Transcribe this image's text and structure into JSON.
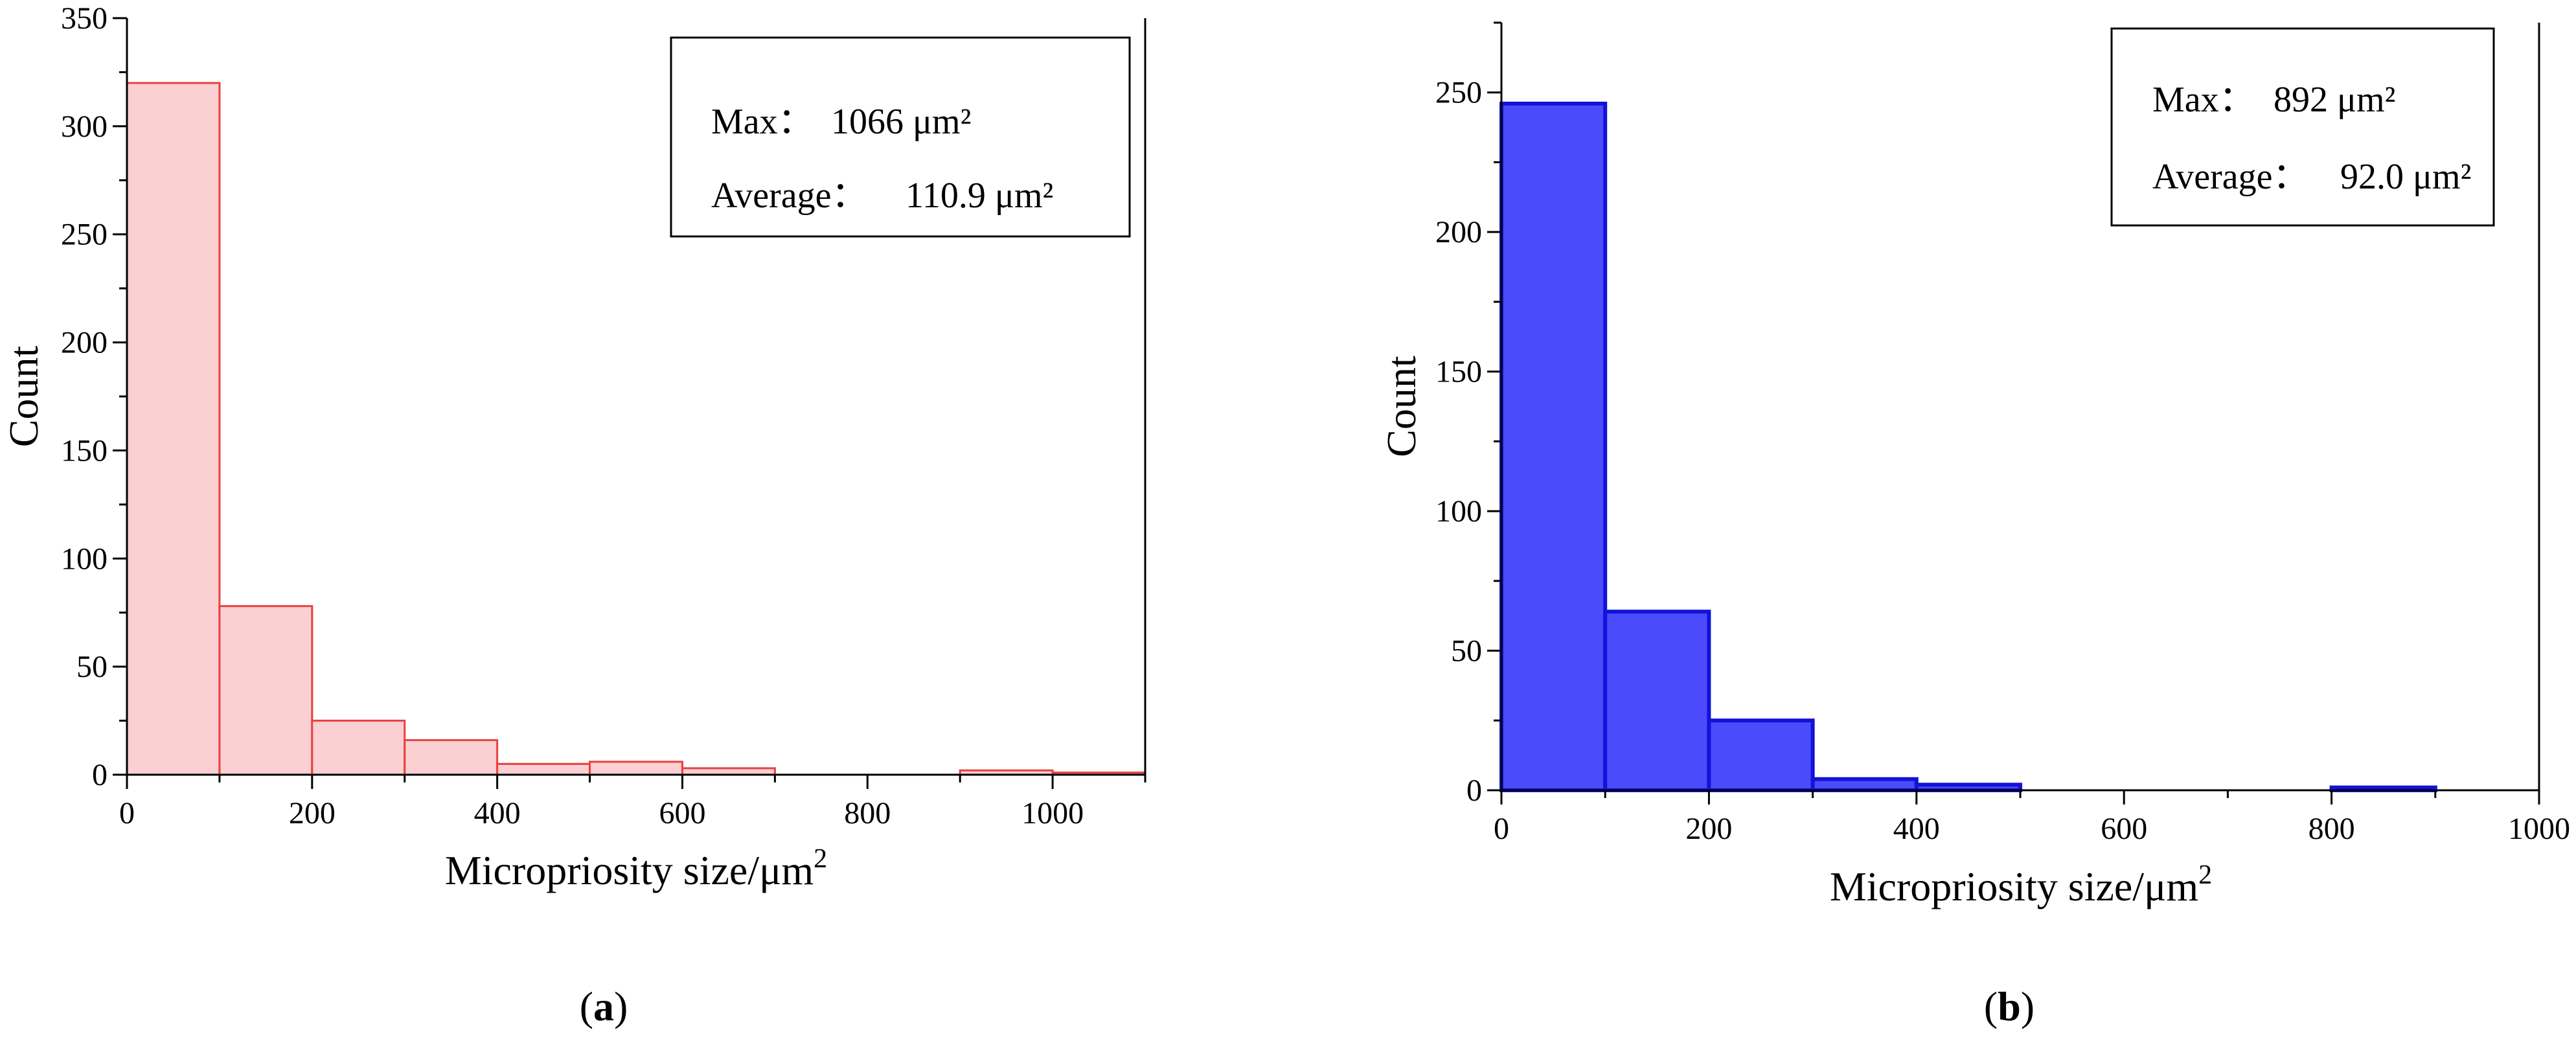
{
  "chart_data": [
    {
      "type": "bar",
      "panel_label": "a",
      "xlabel": "Micropriosity size/μm",
      "xlabel_sup": "2",
      "ylabel": "Count",
      "xlim": [
        0,
        1100
      ],
      "ylim": [
        0,
        350
      ],
      "x_ticks": [
        0,
        200,
        400,
        600,
        800,
        1000
      ],
      "y_ticks": [
        0,
        50,
        100,
        150,
        200,
        250,
        300,
        350
      ],
      "bins": [
        {
          "from": 0,
          "to": 100,
          "count": 320
        },
        {
          "from": 100,
          "to": 200,
          "count": 78
        },
        {
          "from": 200,
          "to": 300,
          "count": 25
        },
        {
          "from": 300,
          "to": 400,
          "count": 16
        },
        {
          "from": 400,
          "to": 500,
          "count": 5
        },
        {
          "from": 500,
          "to": 600,
          "count": 6
        },
        {
          "from": 600,
          "to": 700,
          "count": 3
        },
        {
          "from": 900,
          "to": 1000,
          "count": 2
        },
        {
          "from": 1000,
          "to": 1100,
          "count": 1
        }
      ],
      "fill_color": "#fbd0d3",
      "edge_color": "#e8413f",
      "stats": {
        "max_label": "Max：",
        "max_value": "1066 μm²",
        "average_label": "Average：",
        "average_value": "110.9 μm²"
      }
    },
    {
      "type": "bar",
      "panel_label": "b",
      "xlabel": "Micropriosity size/μm",
      "xlabel_sup": "2",
      "ylabel": "Count",
      "xlim": [
        0,
        1000
      ],
      "ylim": [
        0,
        275
      ],
      "x_ticks": [
        0,
        200,
        400,
        600,
        800,
        1000
      ],
      "y_ticks": [
        0,
        50,
        100,
        150,
        200,
        250
      ],
      "bins": [
        {
          "from": 0,
          "to": 100,
          "count": 246
        },
        {
          "from": 100,
          "to": 200,
          "count": 64
        },
        {
          "from": 200,
          "to": 300,
          "count": 25
        },
        {
          "from": 300,
          "to": 400,
          "count": 4
        },
        {
          "from": 400,
          "to": 500,
          "count": 2
        },
        {
          "from": 800,
          "to": 900,
          "count": 1
        }
      ],
      "fill_color": "#4b4bfb",
      "edge_color": "#1212d8",
      "stats": {
        "max_label": "Max：",
        "max_value": "892 μm²",
        "average_label": "Average：",
        "average_value": "92.0 μm²"
      }
    }
  ]
}
